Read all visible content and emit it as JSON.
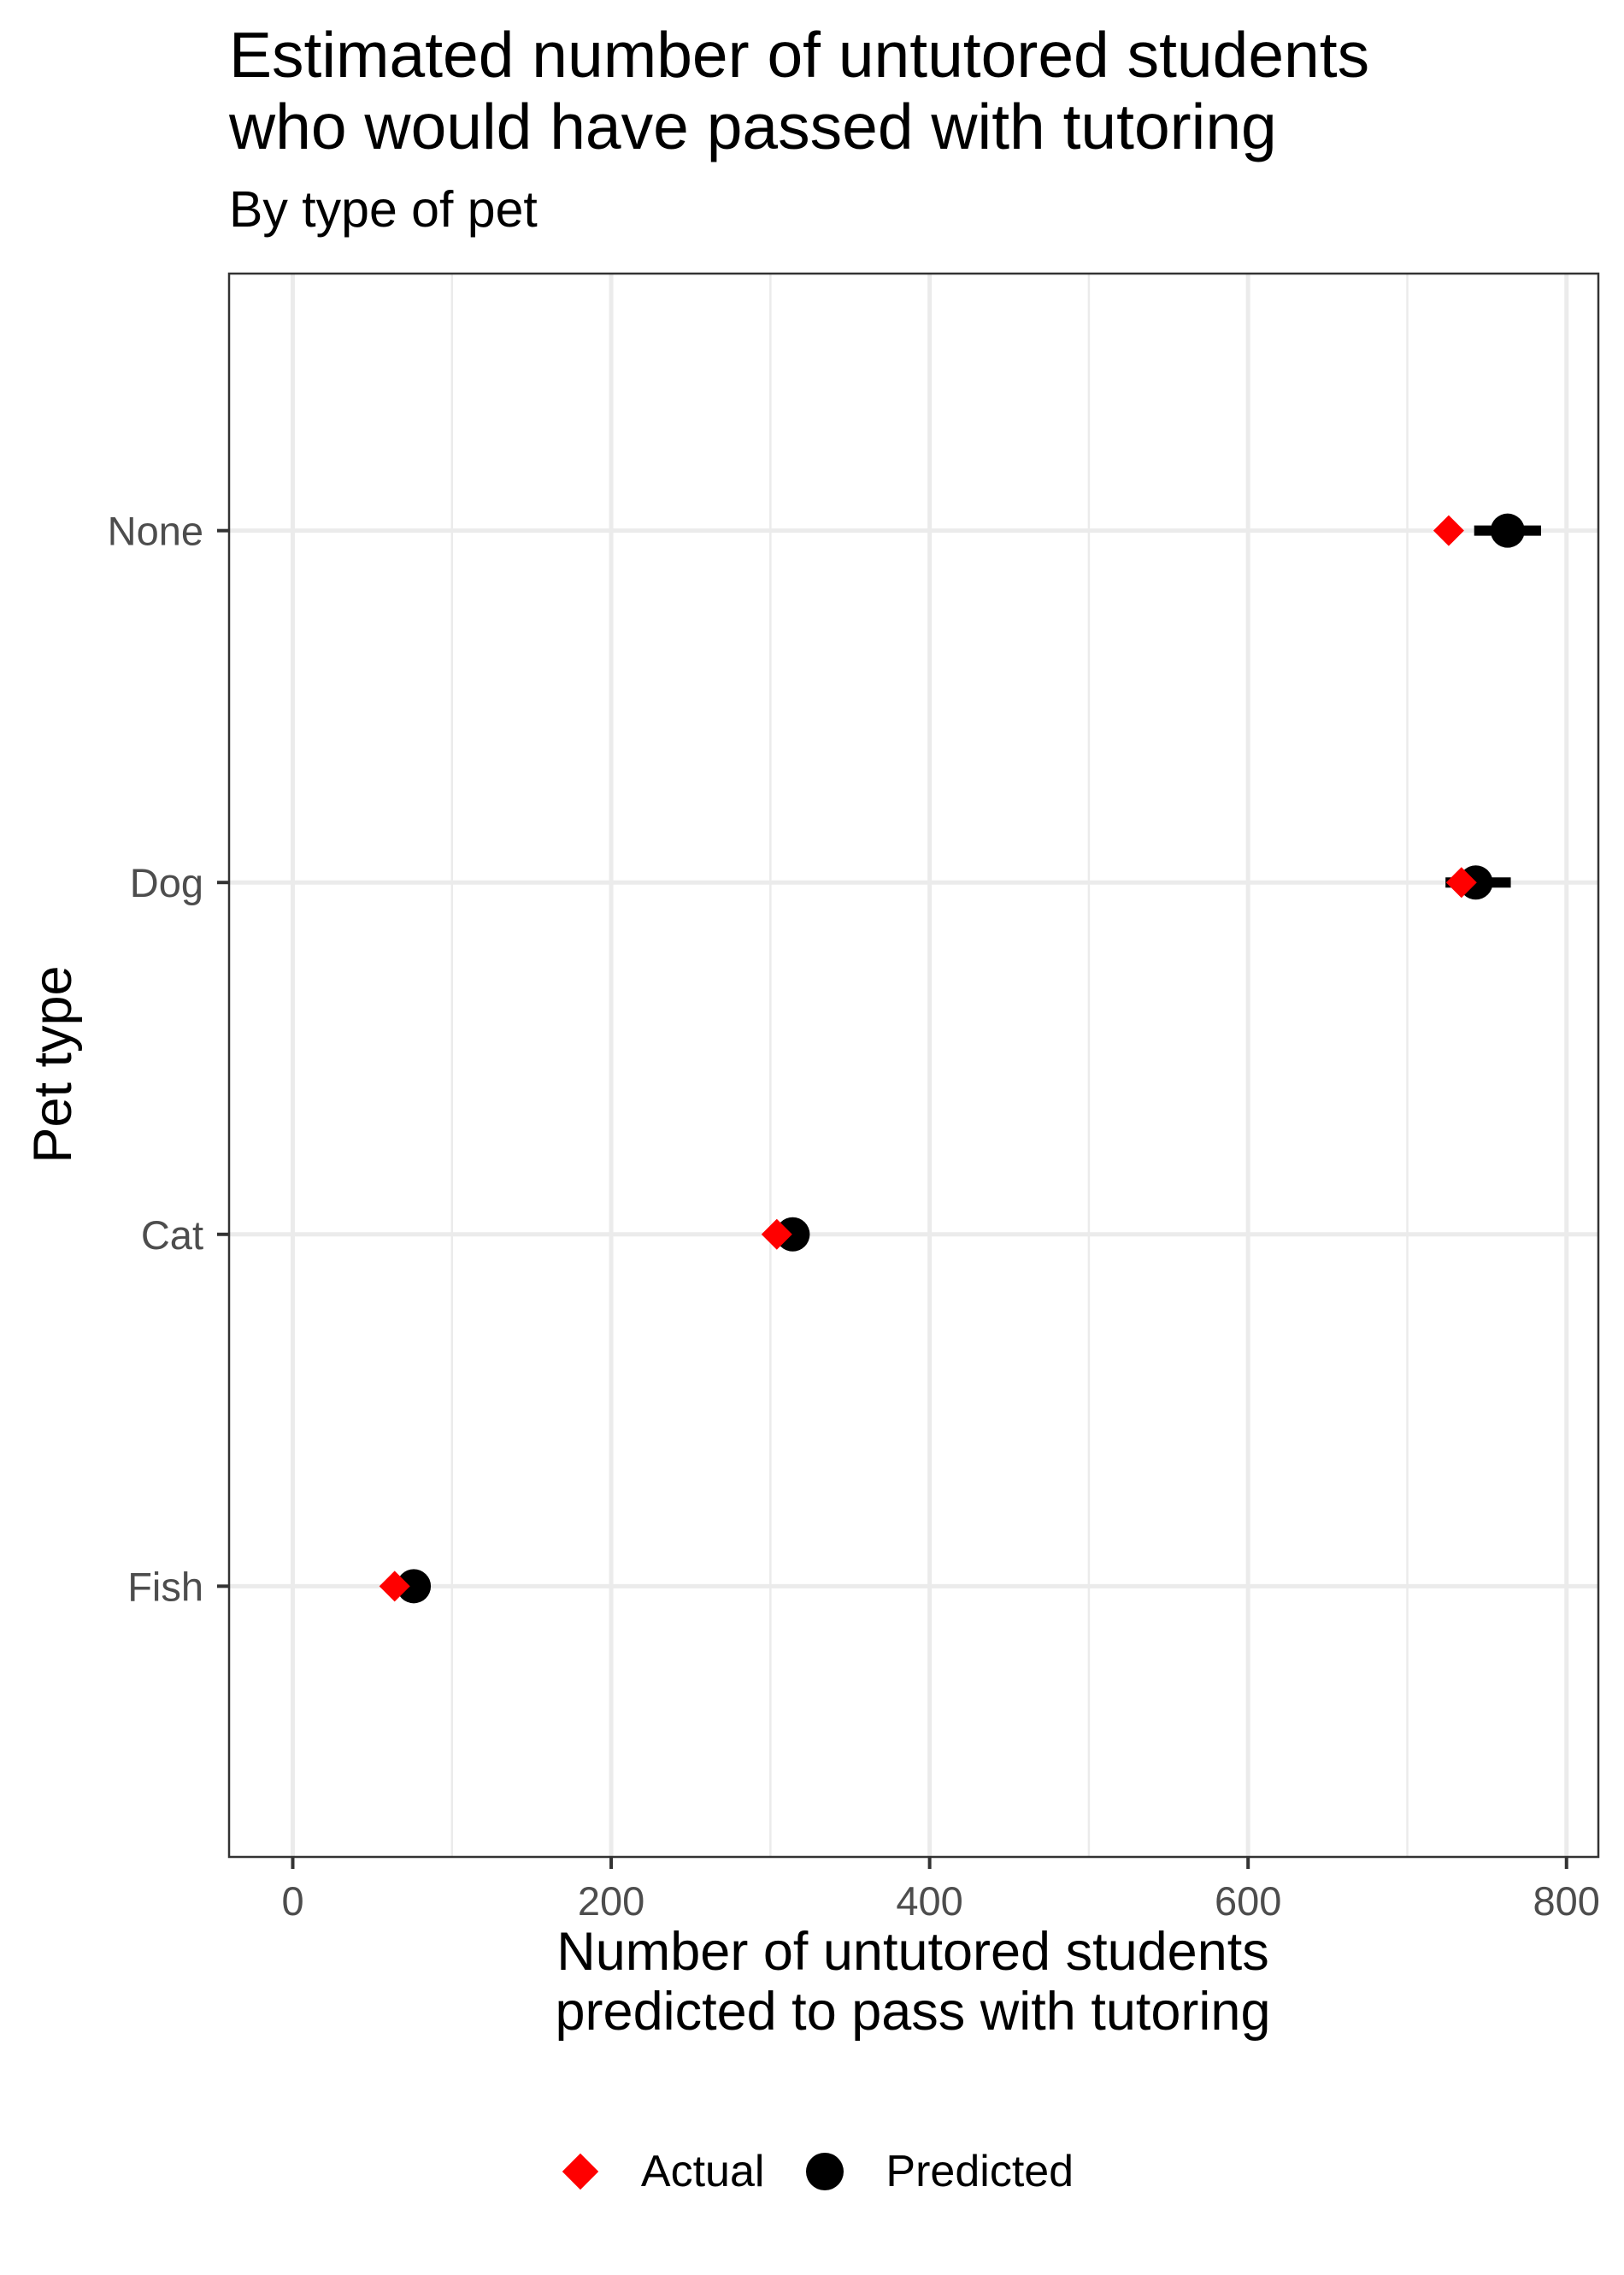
{
  "chart_data": {
    "type": "scatter",
    "title_lines": [
      "Estimated number of untutored students",
      "who would have passed with tutoring"
    ],
    "subtitle": "By type of pet",
    "xlabel_lines": [
      "Number of untutored students",
      "predicted to pass with tutoring"
    ],
    "ylabel": "Pet type",
    "xlim": [
      -40,
      820
    ],
    "x_ticks": [
      0,
      200,
      400,
      600,
      800
    ],
    "x_tick_labels": [
      "0",
      "200",
      "400",
      "600",
      "800"
    ],
    "categories": [
      "None",
      "Dog",
      "Cat",
      "Fish"
    ],
    "grid": true,
    "legend_position": "bottom",
    "series": [
      {
        "name": "Actual",
        "marker": "diamond",
        "color": "#ff0000",
        "values": [
          726,
          734,
          304,
          64
        ]
      },
      {
        "name": "Predicted",
        "marker": "circle",
        "color": "#000000",
        "values": [
          763,
          743,
          314,
          76
        ],
        "interval_low": [
          742,
          724,
          305,
          70
        ],
        "interval_high": [
          784,
          765,
          323,
          82
        ]
      }
    ]
  }
}
